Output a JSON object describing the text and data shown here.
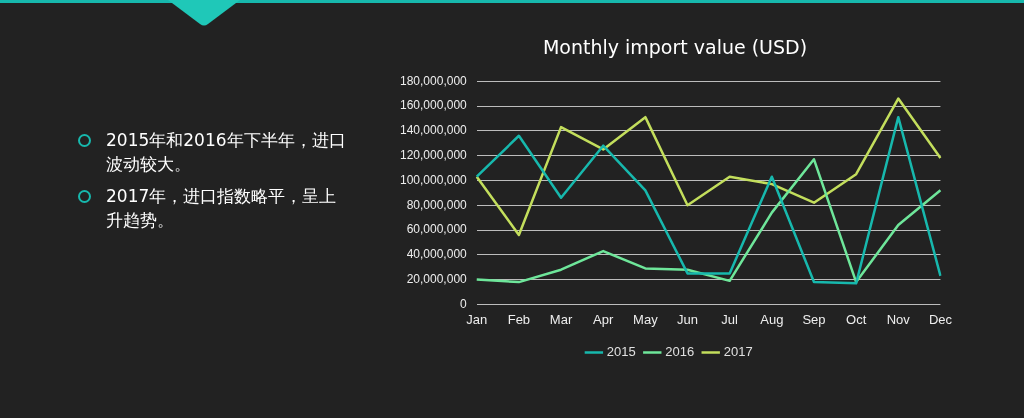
{
  "chart_data": {
    "type": "line",
    "title": "Monthly import value (USD)",
    "categories": [
      "Jan",
      "Feb",
      "Mar",
      "Apr",
      "May",
      "Jun",
      "Jul",
      "Aug",
      "Sep",
      "Oct",
      "Nov",
      "Dec"
    ],
    "series": [
      {
        "name": "2015",
        "color": "#17b8ad",
        "values": [
          103000000,
          136000000,
          86000000,
          128000000,
          92000000,
          25000000,
          25000000,
          103000000,
          18000000,
          17000000,
          151000000,
          23000000
        ]
      },
      {
        "name": "2016",
        "color": "#6ee69a",
        "values": [
          20000000,
          18000000,
          28000000,
          43000000,
          29000000,
          28000000,
          19000000,
          74000000,
          117000000,
          18000000,
          64000000,
          92000000
        ]
      },
      {
        "name": "2017",
        "color": "#c3de5c",
        "values": [
          103000000,
          56000000,
          143000000,
          125000000,
          151000000,
          80000000,
          103000000,
          97000000,
          82000000,
          105000000,
          166000000,
          118000000
        ]
      }
    ],
    "ylim": [
      0,
      180000000
    ],
    "yticks": [
      0,
      {
        "value": 20000000,
        "label": "20,000,000"
      },
      {
        "value": 40000000,
        "label": "40,000,000"
      },
      {
        "value": 60000000,
        "label": "60,000,000"
      },
      {
        "value": 80000000,
        "label": "80,000,000"
      },
      {
        "value": 100000000,
        "label": "100,000,000"
      },
      {
        "value": 120000000,
        "label": "120,000,000"
      },
      {
        "value": 140000000,
        "label": "140,000,000"
      },
      {
        "value": 160000000,
        "label": "160,000,000"
      },
      {
        "value": 180000000,
        "label": "180,000,000"
      }
    ],
    "grid": "y",
    "legend": "bottom",
    "marker": "none",
    "line_style": "solid",
    "annotations": [
      "2015年和2016年下半年，进口波动较大。",
      "2017年，进口指数略平，呈上升趋势。"
    ]
  }
}
